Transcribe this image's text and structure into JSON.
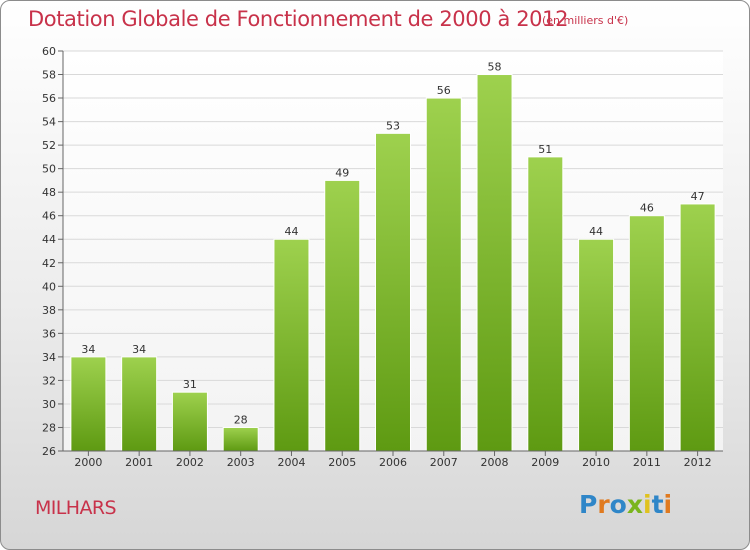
{
  "header": {
    "title": "Dotation Globale de Fonctionnement de 2000 à 2012",
    "unit": "(en milliers d'€)"
  },
  "footer": {
    "commune": "MILHARS",
    "brand": "Proxiti"
  },
  "colors": {
    "title": "#c8324a",
    "bar_top": "#9ed14e",
    "bar_bottom": "#5e9a12",
    "grid": "#d9d9d9"
  },
  "chart_data": {
    "type": "bar",
    "title": "Dotation Globale de Fonctionnement de 2000 à 2012",
    "subtitle": "(en milliers d'€)",
    "xlabel": "",
    "ylabel": "",
    "categories": [
      "2000",
      "2001",
      "2002",
      "2003",
      "2004",
      "2005",
      "2006",
      "2007",
      "2008",
      "2009",
      "2010",
      "2011",
      "2012"
    ],
    "values": [
      34,
      34,
      31,
      28,
      44,
      49,
      53,
      56,
      58,
      51,
      44,
      46,
      47
    ],
    "ylim": [
      26,
      60
    ],
    "yticks": [
      26,
      28,
      30,
      32,
      34,
      36,
      38,
      40,
      42,
      44,
      46,
      48,
      50,
      52,
      54,
      56,
      58,
      60
    ],
    "grid": true,
    "data_labels": true
  }
}
